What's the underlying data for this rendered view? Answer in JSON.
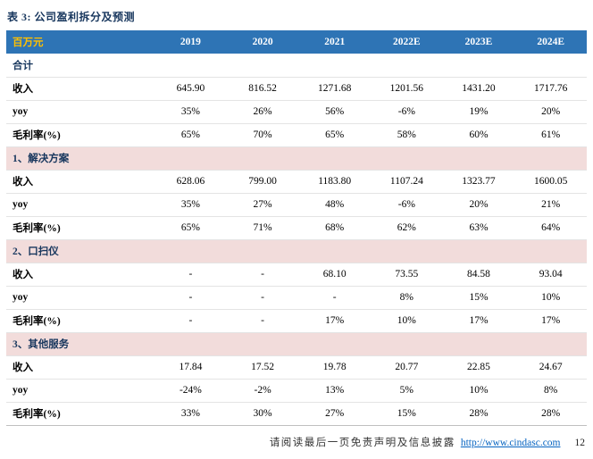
{
  "title": "表 3: 公司盈利拆分及预测",
  "table": {
    "unit_label": "百万元",
    "years": [
      "2019",
      "2020",
      "2021",
      "2022E",
      "2023E",
      "2024E"
    ],
    "sections": [
      {
        "name": "合计",
        "style": "plain",
        "rows": [
          {
            "label": "收入",
            "values": [
              "645.90",
              "816.52",
              "1271.68",
              "1201.56",
              "1431.20",
              "1717.76"
            ]
          },
          {
            "label": "yoy",
            "values": [
              "35%",
              "26%",
              "56%",
              "-6%",
              "19%",
              "20%"
            ]
          },
          {
            "label": "毛利率(%)",
            "values": [
              "65%",
              "70%",
              "65%",
              "58%",
              "60%",
              "61%"
            ]
          }
        ]
      },
      {
        "name": "1、解决方案",
        "style": "peach",
        "rows": [
          {
            "label": "收入",
            "values": [
              "628.06",
              "799.00",
              "1183.80",
              "1107.24",
              "1323.77",
              "1600.05"
            ]
          },
          {
            "label": "yoy",
            "values": [
              "35%",
              "27%",
              "48%",
              "-6%",
              "20%",
              "21%"
            ]
          },
          {
            "label": "毛利率(%)",
            "values": [
              "65%",
              "71%",
              "68%",
              "62%",
              "63%",
              "64%"
            ]
          }
        ]
      },
      {
        "name": "2、口扫仪",
        "style": "peach",
        "rows": [
          {
            "label": "收入",
            "values": [
              "-",
              "-",
              "68.10",
              "73.55",
              "84.58",
              "93.04"
            ]
          },
          {
            "label": "yoy",
            "values": [
              "-",
              "-",
              "-",
              "8%",
              "15%",
              "10%"
            ]
          },
          {
            "label": "毛利率(%)",
            "values": [
              "-",
              "-",
              "17%",
              "10%",
              "17%",
              "17%"
            ]
          }
        ]
      },
      {
        "name": "3、其他服务",
        "style": "peach",
        "rows": [
          {
            "label": "收入",
            "values": [
              "17.84",
              "17.52",
              "19.78",
              "20.77",
              "22.85",
              "24.67"
            ]
          },
          {
            "label": "yoy",
            "values": [
              "-24%",
              "-2%",
              "13%",
              "5%",
              "10%",
              "8%"
            ]
          },
          {
            "label": "毛利率(%)",
            "values": [
              "33%",
              "30%",
              "27%",
              "15%",
              "28%",
              "28%"
            ]
          }
        ]
      }
    ]
  },
  "footer": {
    "disclaimer": "请阅读最后一页免责声明及信息披露",
    "url": "http://www.cindasc.com",
    "page_number": "12"
  },
  "colors": {
    "header_bg": "#2E74B5",
    "header_text": "#FFFFFF",
    "unit_text": "#FFC000",
    "section_bg": "#F2DCDB",
    "title_text": "#17365D",
    "link": "#0563C1"
  }
}
